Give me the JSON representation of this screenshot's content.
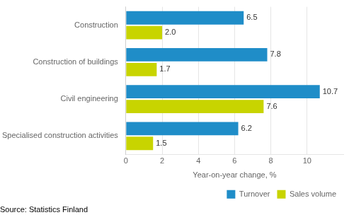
{
  "chart_data": {
    "type": "bar",
    "orientation": "horizontal",
    "categories": [
      "Construction",
      "Construction of buildings",
      "Civil engineering",
      "Specialised construction activities"
    ],
    "series": [
      {
        "name": "Turnover",
        "color": "#1f8dc8",
        "values": [
          6.5,
          7.8,
          10.7,
          6.2
        ],
        "value_labels": [
          "6.5",
          "7.8",
          "10.7",
          "6.2"
        ]
      },
      {
        "name": "Sales volume",
        "color": "#c8d400",
        "values": [
          2.0,
          1.7,
          7.6,
          1.5
        ],
        "value_labels": [
          "2.0",
          "1.7",
          "7.6",
          "1.5"
        ]
      }
    ],
    "xlabel": "Year-on-year change, %",
    "xlim": [
      0,
      12
    ],
    "xticks": [
      0,
      2,
      4,
      6,
      8,
      10
    ],
    "grid": true,
    "legend": "lower right",
    "data_labels": true,
    "annotations": [
      "Source: Statistics Finland"
    ]
  }
}
